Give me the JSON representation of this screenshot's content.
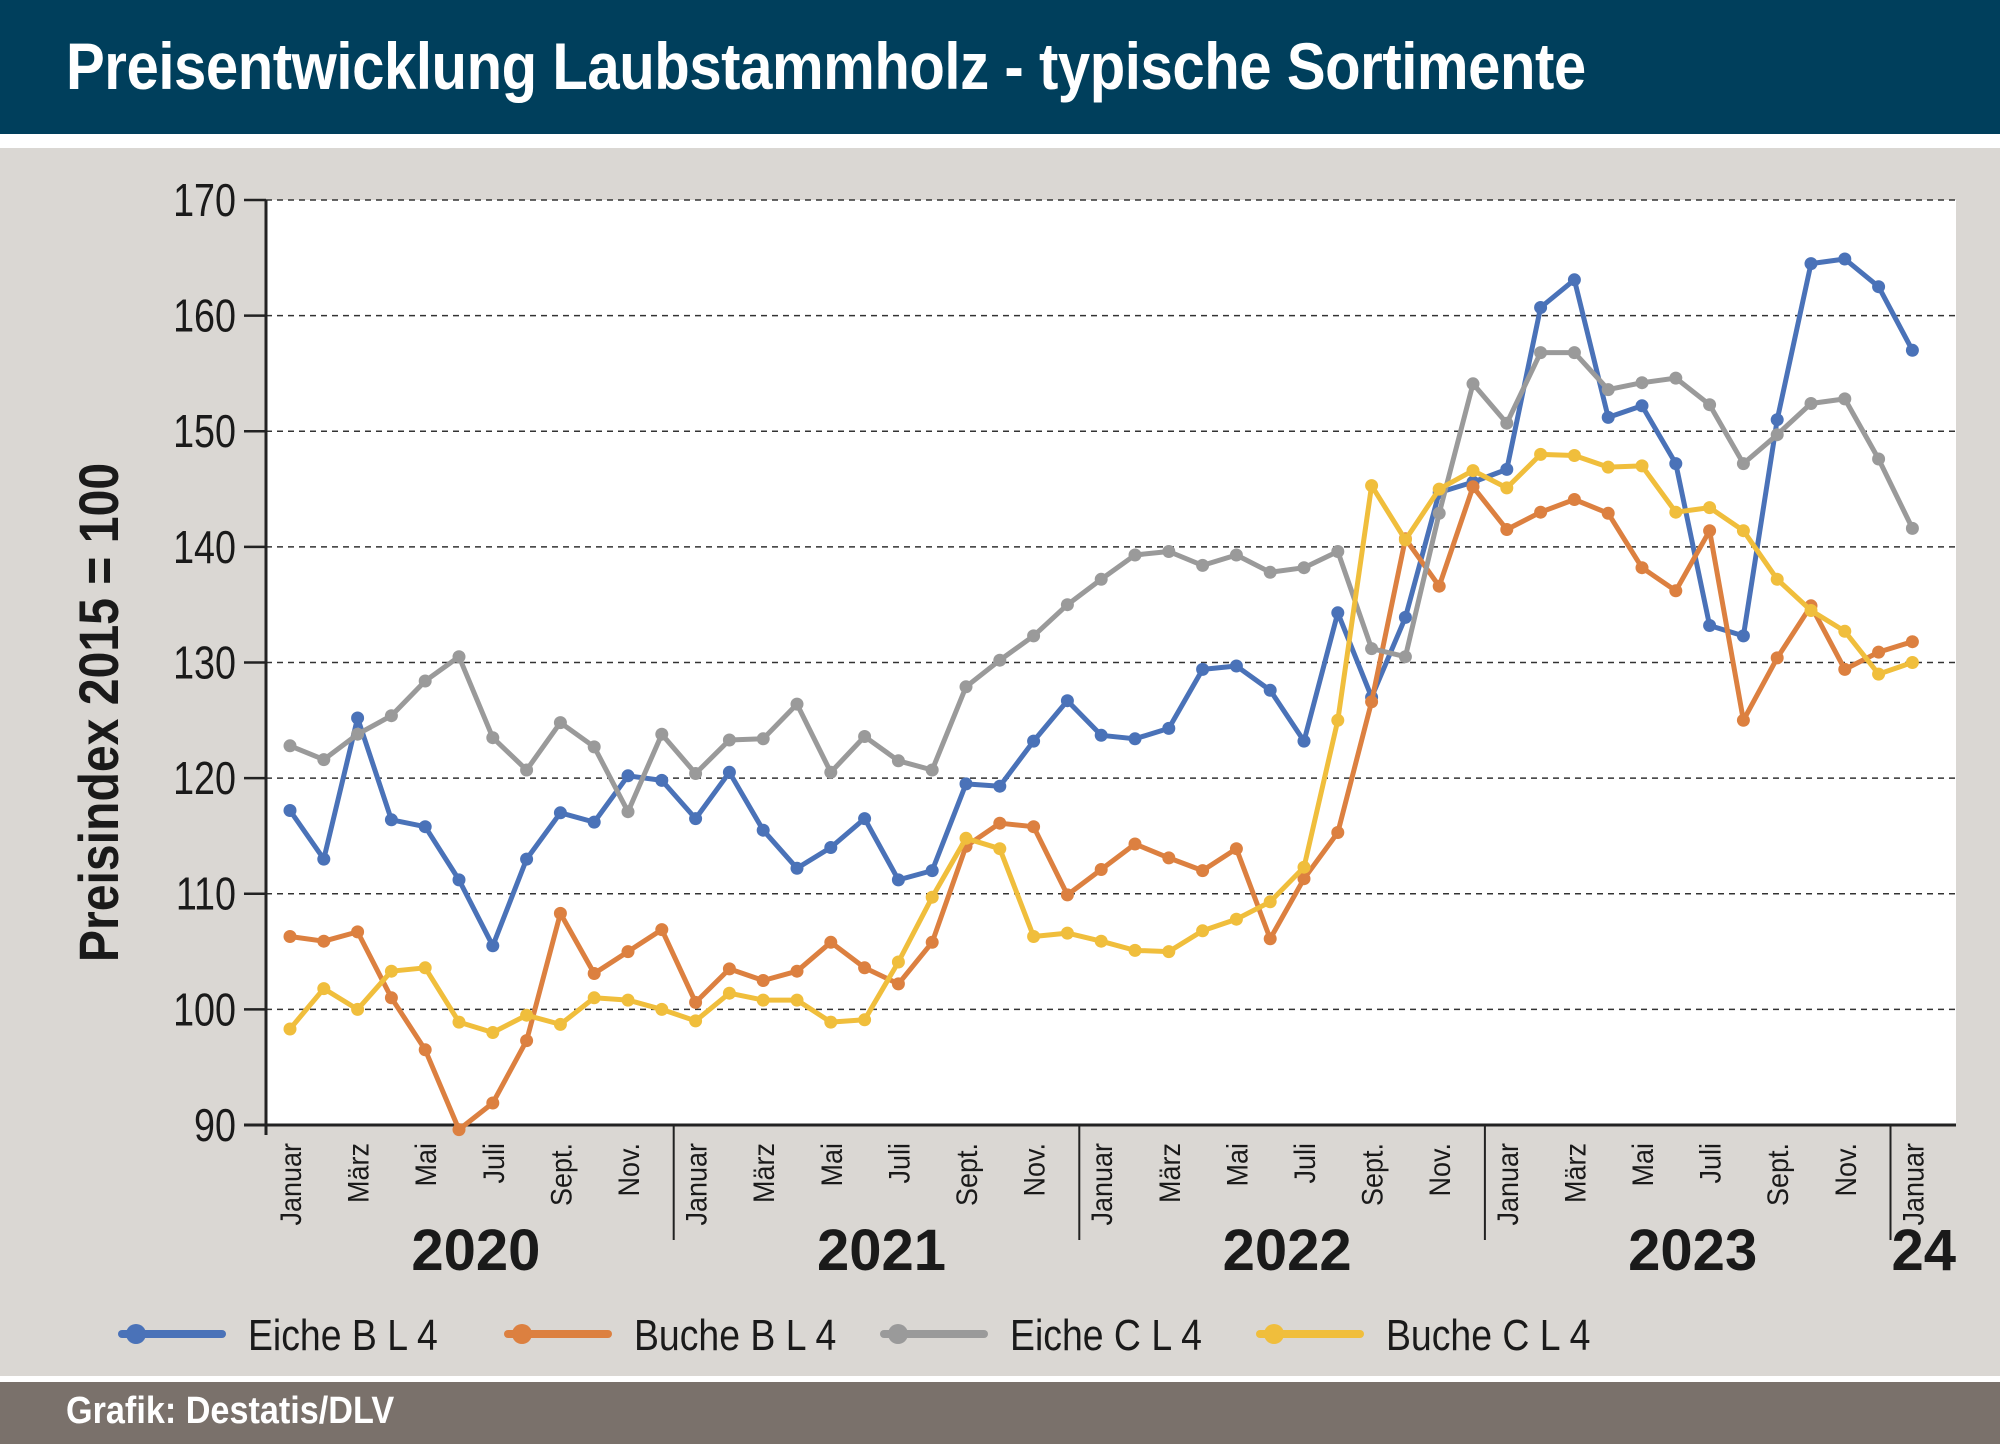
{
  "header": {
    "title": "Preisentwicklung Laubstammholz - typische Sortimente"
  },
  "footer": {
    "credit": "Grafik: Destatis/DLV"
  },
  "colors": {
    "header_bg": "#003f5c",
    "footer_bg": "#7a716b",
    "panel_bg": "#dad7d3",
    "plot_bg": "#ffffff",
    "eiche_b": "#4a72b8",
    "buche_b": "#dc8040",
    "eiche_c": "#9a9a9a",
    "buche_c": "#f0be3c"
  },
  "chart_data": {
    "type": "line",
    "ylabel": "Preisindex 2015 = 100",
    "ylim": [
      90,
      170
    ],
    "yticks": [
      90,
      100,
      110,
      120,
      130,
      140,
      150,
      160,
      170
    ],
    "grid": "horizontal dashed",
    "legend_position": "bottom",
    "month_tick_labels": [
      "Januar",
      "März",
      "Mai",
      "Juli",
      "Sept.",
      "Nov.",
      "Januar",
      "März",
      "Mai",
      "Juli",
      "Sept.",
      "Nov.",
      "Januar",
      "März",
      "Mai",
      "Juli",
      "Sept.",
      "Nov.",
      "Januar",
      "März",
      "Mai",
      "Juli",
      "Sept.",
      "Nov.",
      "Januar"
    ],
    "year_labels": [
      "2020",
      "2021",
      "2022",
      "2023",
      "24"
    ],
    "x": [
      "2020-01",
      "2020-02",
      "2020-03",
      "2020-04",
      "2020-05",
      "2020-06",
      "2020-07",
      "2020-08",
      "2020-09",
      "2020-10",
      "2020-11",
      "2020-12",
      "2021-01",
      "2021-02",
      "2021-03",
      "2021-04",
      "2021-05",
      "2021-06",
      "2021-07",
      "2021-08",
      "2021-09",
      "2021-10",
      "2021-11",
      "2021-12",
      "2022-01",
      "2022-02",
      "2022-03",
      "2022-04",
      "2022-05",
      "2022-06",
      "2022-07",
      "2022-08",
      "2022-09",
      "2022-10",
      "2022-11",
      "2022-12",
      "2023-01",
      "2023-02",
      "2023-03",
      "2023-04",
      "2023-05",
      "2023-06",
      "2023-07",
      "2023-08",
      "2023-09",
      "2023-10",
      "2023-11",
      "2023-12",
      "2024-01",
      "2024-02"
    ],
    "series": [
      {
        "name": "Eiche B L 4",
        "color": "#4a72b8",
        "values": [
          117.2,
          113.0,
          125.2,
          116.4,
          115.8,
          111.2,
          105.5,
          113.0,
          117.0,
          116.2,
          120.2,
          119.8,
          116.5,
          120.5,
          115.5,
          112.2,
          114.0,
          116.5,
          111.2,
          112.0,
          119.5,
          119.3,
          123.2,
          126.7,
          123.7,
          123.4,
          124.3,
          129.4,
          129.7,
          127.6,
          123.2,
          134.3,
          127.0,
          133.9,
          144.7,
          145.6,
          146.7,
          160.7,
          163.1,
          151.2,
          152.2,
          147.2,
          133.2,
          132.3,
          151.0,
          164.5,
          164.9,
          162.5,
          157.0,
          null
        ]
      },
      {
        "name": "Buche B L 4",
        "color": "#dc8040",
        "values": [
          106.3,
          105.9,
          106.7,
          101.0,
          96.5,
          89.6,
          91.9,
          97.3,
          108.3,
          103.1,
          105.0,
          106.9,
          100.6,
          103.5,
          102.5,
          103.3,
          105.8,
          103.6,
          102.2,
          105.8,
          114.1,
          116.1,
          115.8,
          109.9,
          112.1,
          114.3,
          113.1,
          112.0,
          113.9,
          106.1,
          111.3,
          115.3,
          126.6,
          140.7,
          136.6,
          145.2,
          141.5,
          143.0,
          144.1,
          142.9,
          138.2,
          136.2,
          141.4,
          125.0,
          130.4,
          134.9,
          129.4,
          130.9,
          131.8,
          null
        ]
      },
      {
        "name": "Eiche C L 4",
        "color": "#9a9a9a",
        "values": [
          122.8,
          121.6,
          123.8,
          125.4,
          128.4,
          130.5,
          123.5,
          120.7,
          124.8,
          122.7,
          117.1,
          123.8,
          120.4,
          123.3,
          123.4,
          126.4,
          120.5,
          123.6,
          121.5,
          120.7,
          127.9,
          130.2,
          132.3,
          135.0,
          137.2,
          139.3,
          139.6,
          138.4,
          139.3,
          137.8,
          138.2,
          139.6,
          131.2,
          130.5,
          142.9,
          154.1,
          150.7,
          156.8,
          156.8,
          153.6,
          154.2,
          154.6,
          152.3,
          147.2,
          149.7,
          152.4,
          152.8,
          147.6,
          141.6,
          null
        ]
      },
      {
        "name": "Buche C L 4",
        "color": "#f0be3c",
        "values": [
          98.3,
          101.8,
          100.0,
          103.3,
          103.6,
          98.9,
          98.0,
          99.5,
          98.7,
          101.0,
          100.8,
          100.0,
          99.0,
          101.4,
          100.8,
          100.8,
          98.9,
          99.1,
          104.1,
          109.7,
          114.8,
          113.9,
          106.3,
          106.6,
          105.9,
          105.1,
          105.0,
          106.8,
          107.8,
          109.3,
          112.3,
          125.0,
          145.3,
          140.6,
          145.0,
          146.6,
          145.1,
          148.0,
          147.9,
          146.9,
          147.0,
          143.0,
          143.4,
          141.4,
          137.2,
          134.5,
          132.7,
          129.0,
          130.0,
          null
        ]
      }
    ]
  }
}
